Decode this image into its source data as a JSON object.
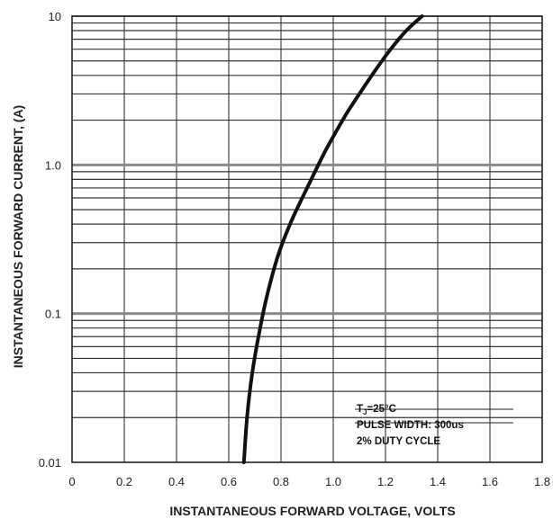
{
  "chart_data": {
    "type": "line",
    "title": "",
    "xlabel": "INSTANTANEOUS FORWARD VOLTAGE, VOLTS",
    "ylabel": "INSTANTANEOUS FORWARD CURRENT, (A)",
    "x_scale": "linear",
    "y_scale": "log",
    "xlim": [
      0,
      1.8
    ],
    "ylim": [
      0.01,
      10
    ],
    "x_tick_labels": [
      "0",
      "0.2",
      "0.4",
      "0.6",
      "0.8",
      "1.0",
      "1.2",
      "1.4",
      "1.6",
      "1.8"
    ],
    "y_tick_labels": [
      "0.01",
      "0.1",
      "1.0",
      "10"
    ],
    "grid": true,
    "series": [
      {
        "color": "#111111",
        "x": [
          0.658,
          0.67,
          0.69,
          0.72,
          0.75,
          0.79,
          0.84,
          0.9,
          0.96,
          1.0,
          1.05,
          1.1,
          1.16,
          1.22,
          1.28,
          1.34
        ],
        "y": [
          0.01,
          0.02,
          0.04,
          0.08,
          0.14,
          0.25,
          0.42,
          0.7,
          1.15,
          1.55,
          2.2,
          3.0,
          4.3,
          6.0,
          8.0,
          10.2
        ]
      }
    ],
    "annotation": {
      "lines": [
        "PULSE WIDTH: 300us",
        "2% DUTY CYCLE"
      ],
      "tj_prefix": "T",
      "tj_sub": "J",
      "tj_suffix": "=25°C"
    }
  }
}
